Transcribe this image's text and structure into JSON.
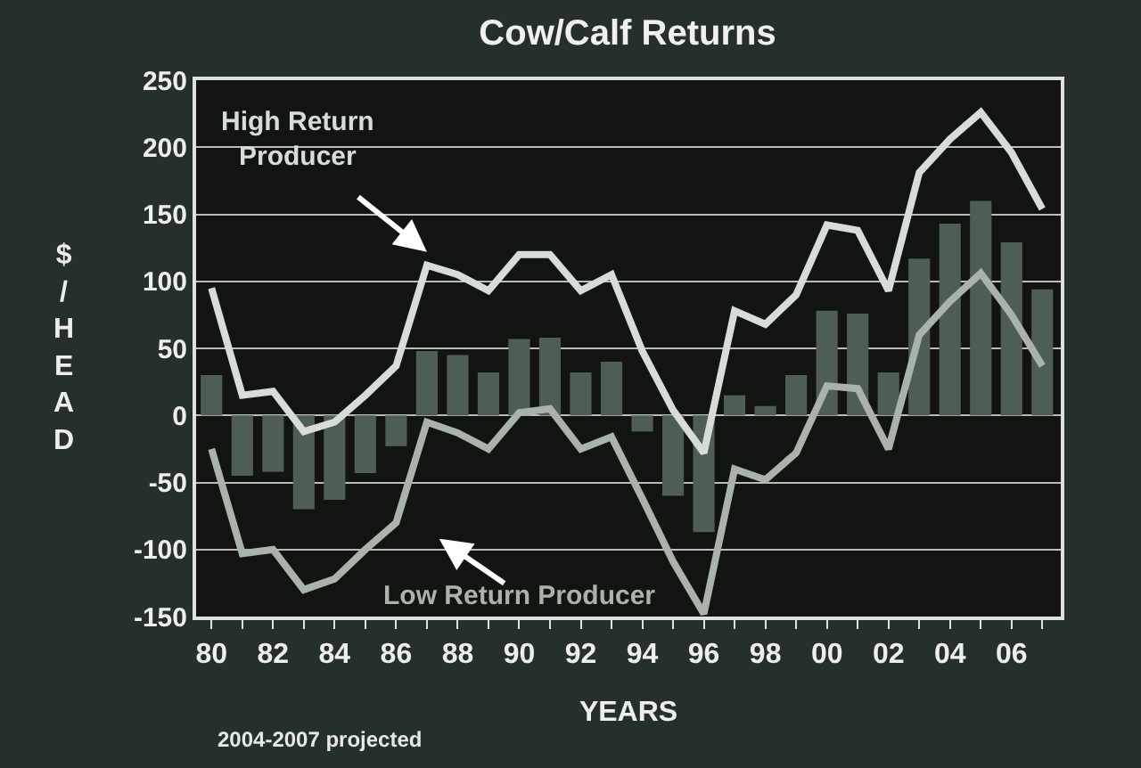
{
  "chart_data": {
    "type": "line",
    "title": "Cow/Calf Returns",
    "xlabel": "YEARS",
    "ylabel": "$/HEAD",
    "x": [
      1980,
      1981,
      1982,
      1983,
      1984,
      1985,
      1986,
      1987,
      1988,
      1989,
      1990,
      1991,
      1992,
      1993,
      1994,
      1995,
      1996,
      1997,
      1998,
      1999,
      2000,
      2001,
      2002,
      2003,
      2004,
      2005,
      2006,
      2007
    ],
    "series": [
      {
        "type": "bar",
        "color": "#4e5e52",
        "values": [
          30,
          -45,
          -42,
          -70,
          -63,
          -43,
          -23,
          48,
          45,
          32,
          57,
          58,
          32,
          40,
          -12,
          -60,
          -87,
          15,
          7,
          30,
          78,
          76,
          32,
          117,
          143,
          160,
          129,
          94
        ]
      },
      {
        "name": "High Return Producer",
        "color": "#d8dcd8",
        "values": [
          95,
          15,
          18,
          -12,
          -5,
          15,
          37,
          112,
          105,
          93,
          120,
          120,
          93,
          105,
          48,
          4,
          -28,
          78,
          68,
          90,
          142,
          138,
          93,
          181,
          206,
          226,
          196,
          154
        ]
      },
      {
        "name": "Low Return Producer",
        "color": "#a9b3aa",
        "values": [
          -25,
          -103,
          -100,
          -130,
          -122,
          -100,
          -80,
          -5,
          -13,
          -25,
          2,
          5,
          -25,
          -16,
          -62,
          -109,
          -148,
          -40,
          -48,
          -28,
          22,
          20,
          -25,
          60,
          85,
          106,
          75,
          37
        ]
      }
    ],
    "xlim": [
      1979.5,
      2007.6
    ],
    "xticks": [
      {
        "value": 1980,
        "label": "80"
      },
      {
        "value": 1981,
        "label": null
      },
      {
        "value": 1982,
        "label": "82"
      },
      {
        "value": 1983,
        "label": null
      },
      {
        "value": 1984,
        "label": "84"
      },
      {
        "value": 1985,
        "label": null
      },
      {
        "value": 1986,
        "label": "86"
      },
      {
        "value": 1987,
        "label": null
      },
      {
        "value": 1988,
        "label": "88"
      },
      {
        "value": 1989,
        "label": null
      },
      {
        "value": 1990,
        "label": "90"
      },
      {
        "value": 1991,
        "label": null
      },
      {
        "value": 1992,
        "label": "92"
      },
      {
        "value": 1993,
        "label": null
      },
      {
        "value": 1994,
        "label": "94"
      },
      {
        "value": 1995,
        "label": null
      },
      {
        "value": 1996,
        "label": "96"
      },
      {
        "value": 1997,
        "label": null
      },
      {
        "value": 1998,
        "label": "98"
      },
      {
        "value": 1999,
        "label": null
      },
      {
        "value": 2000,
        "label": "00"
      },
      {
        "value": 2001,
        "label": null
      },
      {
        "value": 2002,
        "label": "02"
      },
      {
        "value": 2003,
        "label": null
      },
      {
        "value": 2004,
        "label": "04"
      },
      {
        "value": 2005,
        "label": null
      },
      {
        "value": 2006,
        "label": "06"
      },
      {
        "value": 2007,
        "label": null
      }
    ],
    "ylim": [
      -150,
      250
    ],
    "yticks": [
      -150,
      -100,
      -50,
      0,
      50,
      100,
      150,
      200,
      250
    ],
    "grid": "y",
    "annotations": [
      "2004-2007 projected"
    ]
  }
}
